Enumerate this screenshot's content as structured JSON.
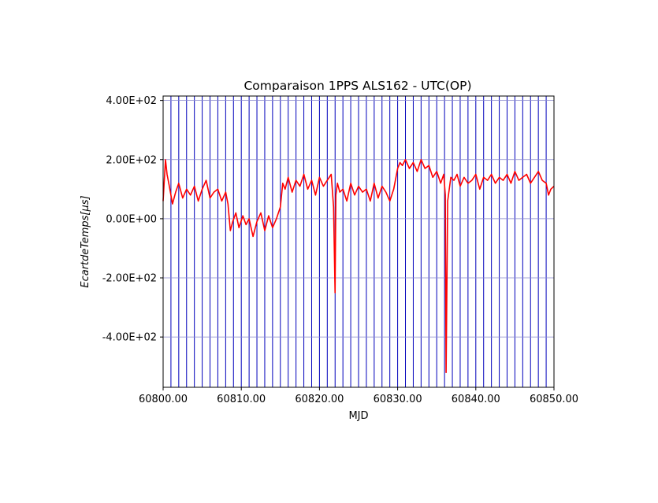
{
  "chart_data": {
    "type": "line",
    "title": "Comparaison 1PPS ALS162 - UTC(OP)",
    "xlabel": "MJD",
    "ylabel": "EcartdeTemps[μs]",
    "xlim": [
      60800,
      60850
    ],
    "ylim": [
      -570,
      415
    ],
    "x_ticks": [
      {
        "value": 60800,
        "label": "60800.00"
      },
      {
        "value": 60810,
        "label": "60810.00"
      },
      {
        "value": 60820,
        "label": "60820.00"
      },
      {
        "value": 60830,
        "label": "60830.00"
      },
      {
        "value": 60840,
        "label": "60840.00"
      },
      {
        "value": 60850,
        "label": "60850.00"
      }
    ],
    "y_ticks": [
      {
        "value": 400,
        "label": "4.00E+02"
      },
      {
        "value": 200,
        "label": "2.00E+02"
      },
      {
        "value": 0,
        "label": "0.00E+00"
      },
      {
        "value": -200,
        "label": "-2.00E+02"
      },
      {
        "value": -400,
        "label": "-4.00E+02"
      }
    ],
    "grid": true,
    "vertical_lines_every": 1,
    "colors": {
      "series": "#ff0000",
      "vertical_lines": "#0000bb",
      "grid": "#8888cc",
      "axes": "#000000"
    },
    "series": [
      {
        "x": [
          60800.0,
          60800.3,
          60800.5,
          60800.8,
          60801.2,
          60801.6,
          60802.0,
          60802.5,
          60803.0,
          60803.5,
          60804.0,
          60804.5,
          60805.0,
          60805.5,
          60806.0,
          60806.5,
          60807.0,
          60807.5,
          60808.0,
          60808.3,
          60808.6,
          60808.9,
          60809.3,
          60809.7,
          60810.2,
          60810.6,
          60811.0,
          60811.5,
          60812.0,
          60812.5,
          60813.0,
          60813.5,
          60814.0,
          60814.5,
          60815.0,
          60815.3,
          60815.6,
          60816.0,
          60816.5,
          60817.0,
          60817.5,
          60818.0,
          60818.5,
          60819.0,
          60819.5,
          60820.0,
          60820.5,
          60821.0,
          60821.5,
          60821.8,
          60822.0,
          60822.1,
          60822.3,
          60822.6,
          60823.0,
          60823.5,
          60824.0,
          60824.5,
          60825.0,
          60825.5,
          60826.0,
          60826.5,
          60827.0,
          60827.5,
          60828.0,
          60828.5,
          60829.0,
          60829.5,
          60830.0,
          60830.3,
          60830.6,
          60831.0,
          60831.5,
          60832.0,
          60832.5,
          60833.0,
          60833.5,
          60834.0,
          60834.5,
          60835.0,
          60835.5,
          60835.9,
          60836.1,
          60836.2,
          60836.4,
          60836.8,
          60837.2,
          60837.6,
          60838.0,
          60838.5,
          60839.0,
          60839.5,
          60840.0,
          60840.5,
          60841.0,
          60841.5,
          60842.0,
          60842.5,
          60843.0,
          60843.5,
          60844.0,
          60844.5,
          60845.0,
          60845.5,
          60846.0,
          60846.5,
          60847.0,
          60847.5,
          60848.0,
          60848.5,
          60849.0,
          60849.3,
          60849.6,
          60850.0
        ],
        "y": [
          60,
          200,
          150,
          110,
          50,
          90,
          120,
          70,
          100,
          80,
          110,
          60,
          100,
          130,
          70,
          90,
          100,
          60,
          90,
          50,
          -40,
          -10,
          20,
          -30,
          10,
          -20,
          0,
          -60,
          -10,
          20,
          -40,
          10,
          -30,
          0,
          40,
          120,
          100,
          140,
          90,
          130,
          110,
          150,
          100,
          130,
          80,
          140,
          110,
          130,
          150,
          40,
          -250,
          80,
          120,
          90,
          100,
          60,
          120,
          80,
          110,
          90,
          100,
          60,
          120,
          70,
          110,
          90,
          60,
          100,
          170,
          190,
          180,
          200,
          170,
          190,
          160,
          200,
          170,
          180,
          140,
          160,
          120,
          150,
          80,
          -520,
          60,
          140,
          130,
          150,
          110,
          140,
          120,
          130,
          150,
          100,
          140,
          130,
          150,
          120,
          140,
          130,
          150,
          120,
          160,
          130,
          140,
          150,
          120,
          140,
          160,
          130,
          120,
          80,
          100,
          110
        ]
      }
    ]
  }
}
